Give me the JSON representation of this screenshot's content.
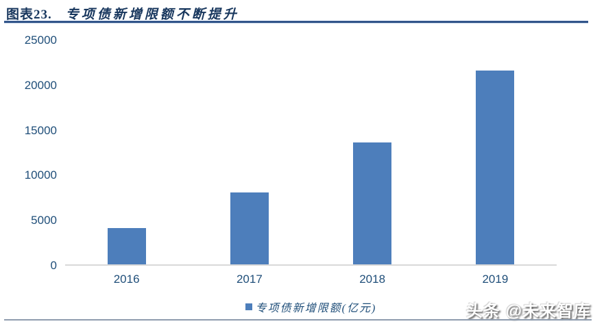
{
  "header": {
    "figure_label": "图表23.",
    "title": "专项债新增限额不断提升"
  },
  "chart_data": {
    "type": "bar",
    "title": "专项债新增限额不断提升",
    "categories": [
      "2016",
      "2017",
      "2018",
      "2019"
    ],
    "values": [
      4000,
      8000,
      13500,
      21500
    ],
    "series_name": "专项债新增限额(亿元)",
    "xlabel": "",
    "ylabel": "",
    "ylim": [
      0,
      25000
    ],
    "yticks": [
      0,
      5000,
      10000,
      15000,
      20000,
      25000
    ],
    "grid": false,
    "legend_position": "bottom",
    "bar_color": "#4D7EBB",
    "axis_line_color": "#D9D9D9",
    "tick_label_color": "#1F4E79"
  },
  "legend": {
    "label": "专项债新增限额(亿元)",
    "marker_color": "#4D7EBB"
  },
  "watermark": {
    "text": "头条 @未来智库"
  },
  "colors": {
    "title_navy": "#17365D",
    "label_blue": "#1F4E79",
    "bar_blue": "#4D7EBB",
    "axis_gray": "#D9D9D9",
    "bottom_rule": "#8E9CAE"
  }
}
